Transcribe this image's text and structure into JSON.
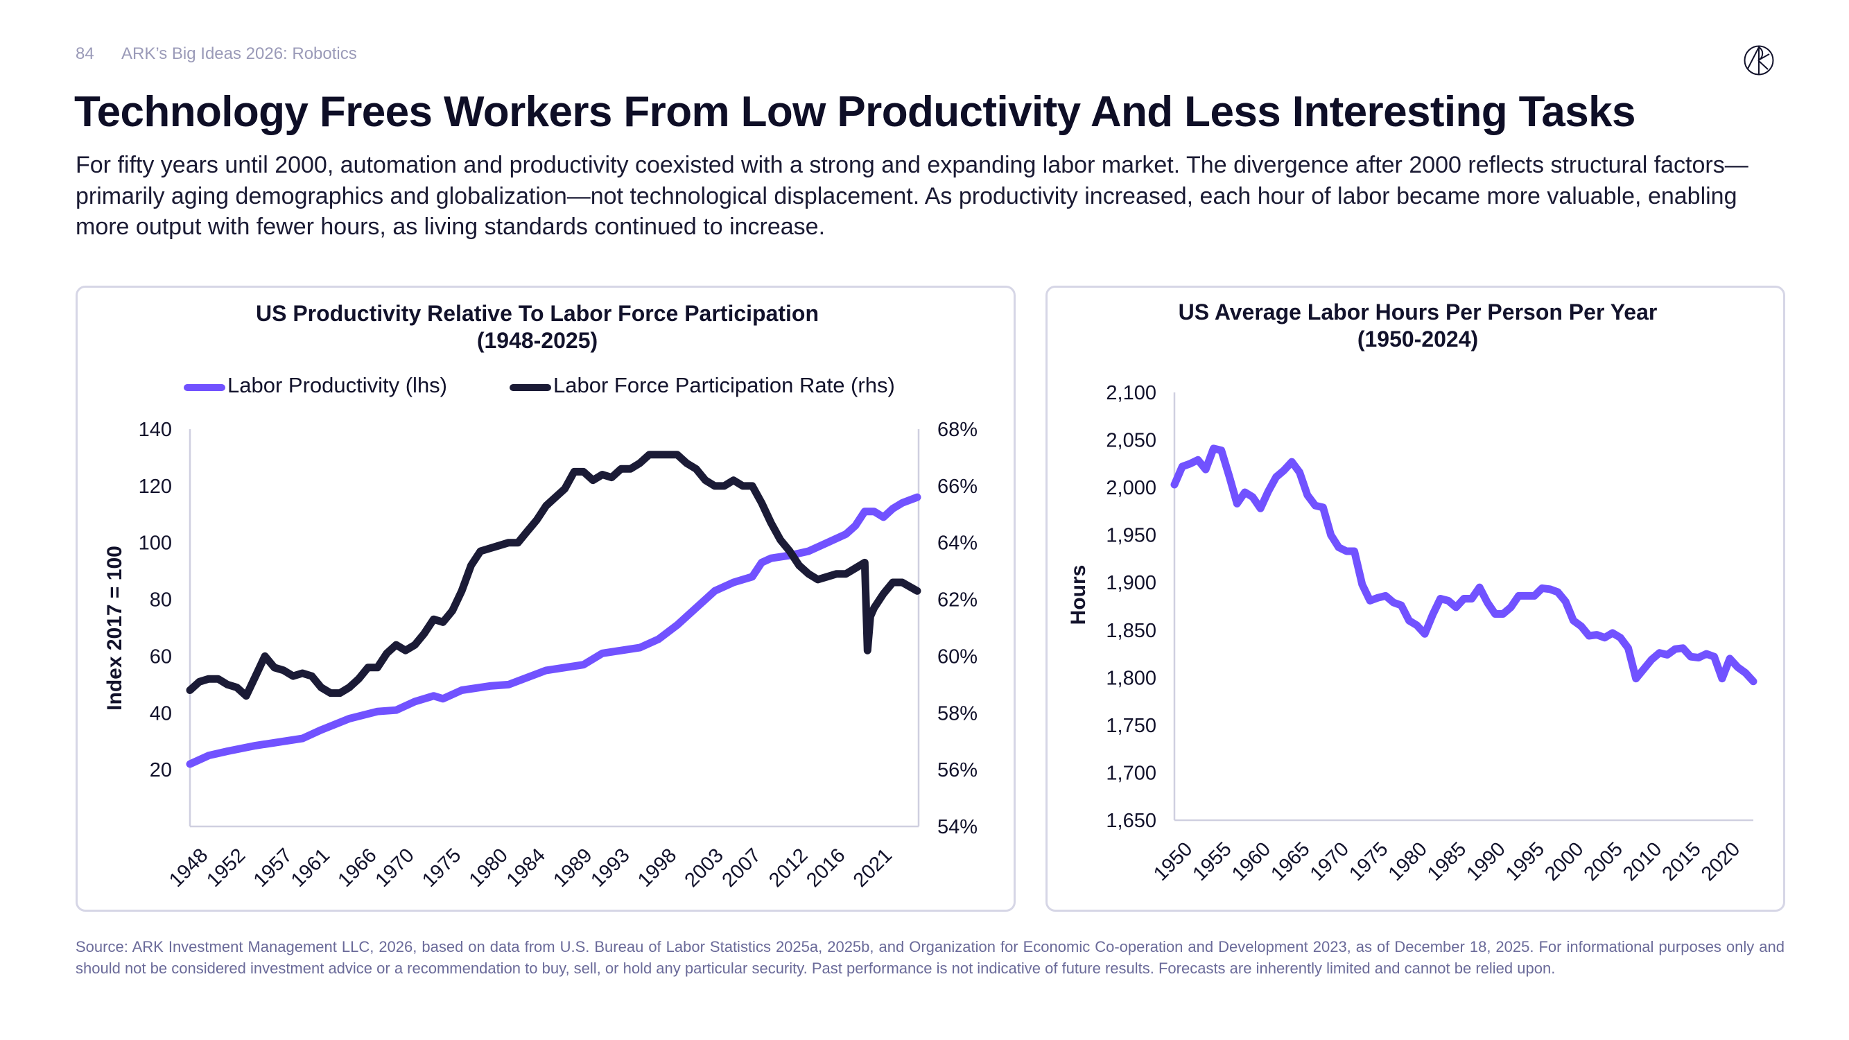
{
  "header": {
    "page_number": "84",
    "section": "ARK’s Big Ideas 2026: Robotics",
    "logo": "ark-logo-icon",
    "title": "Technology Frees Workers From Low Productivity And Less Interesting Tasks",
    "paragraph": "For fifty years until 2000, automation and productivity coexisted with a strong and expanding labor market. The divergence after 2000 reflects structural factors—primarily aging demographics and globalization—not technological displacement. As productivity increased, each hour of labor became more valuable, enabling more output with fewer hours, as living standards continued to increase."
  },
  "footnote": "Source: ARK Investment Management LLC, 2026, based on data from U.S. Bureau of Labor Statistics 2025a, 2025b, and Organization for Economic Co-operation and Development 2023, as of December 18, 2025. For informational purposes only and should not be considered investment advice or a recommendation to buy, sell, or hold any particular security. Past performance is not indicative of future results. Forecasts are inherently limited and cannot be relied upon.",
  "colors": {
    "purple": "#7152ff",
    "navy": "#1b1b36",
    "axis": "#cfcfe0"
  },
  "chart_data": [
    {
      "type": "line",
      "title": "US Productivity Relative To Labor Force Participation",
      "subtitle": "(1948-2025)",
      "ylabel": "Index 2017 = 100",
      "ylim": [
        0,
        140
      ],
      "y_ticks": [
        "20",
        "40",
        "60",
        "80",
        "100",
        "120",
        "140"
      ],
      "y2lim": [
        54,
        68
      ],
      "y2_ticks": [
        "54%",
        "56%",
        "58%",
        "60%",
        "62%",
        "64%",
        "66%",
        "68%"
      ],
      "x_ticks": [
        "1948",
        "1952",
        "1957",
        "1961",
        "1966",
        "1970",
        "1975",
        "1980",
        "1984",
        "1989",
        "1993",
        "1998",
        "2003",
        "2007",
        "2012",
        "2016",
        "2021"
      ],
      "xlim": [
        1948,
        2025.75
      ],
      "legend": "top",
      "grid": false,
      "series": [
        {
          "name": "Labor Productivity (lhs)",
          "axis": "left",
          "color": "#7152ff",
          "x": [
            1948,
            1950,
            1952,
            1955,
            1957,
            1960,
            1962,
            1965,
            1968,
            1970,
            1972,
            1974,
            1975,
            1977,
            1980,
            1982,
            1984,
            1986,
            1988,
            1990,
            1992,
            1994,
            1996,
            1998,
            2000,
            2002,
            2004,
            2006,
            2008,
            2009,
            2010,
            2012,
            2014,
            2016,
            2018,
            2019,
            2020,
            2021,
            2022,
            2023,
            2024,
            2025.6
          ],
          "values": [
            22,
            25,
            26.5,
            28.5,
            29.5,
            31,
            34,
            38,
            40.5,
            41,
            44,
            46,
            45,
            48,
            49.5,
            50,
            52.5,
            55,
            56,
            57,
            61,
            62,
            63,
            66,
            71,
            77,
            83,
            86,
            88,
            93,
            94.5,
            95.5,
            97,
            100,
            103,
            106,
            111,
            111,
            109,
            112,
            114,
            116
          ]
        },
        {
          "name": "Labor Force Participation Rate (rhs)",
          "axis": "right",
          "color": "#1b1b36",
          "x": [
            1948,
            1949,
            1950,
            1951,
            1952,
            1953,
            1954,
            1955,
            1956,
            1957,
            1958,
            1959,
            1960,
            1961,
            1962,
            1963,
            1964,
            1965,
            1966,
            1967,
            1968,
            1969,
            1970,
            1971,
            1972,
            1973,
            1974,
            1975,
            1976,
            1977,
            1978,
            1979,
            1980,
            1981,
            1982,
            1983,
            1984,
            1985,
            1986,
            1987,
            1988,
            1989,
            1990,
            1991,
            1992,
            1993,
            1994,
            1995,
            1996,
            1997,
            1998,
            1999,
            2000,
            2001,
            2002,
            2003,
            2004,
            2005,
            2006,
            2007,
            2008,
            2009,
            2010,
            2011,
            2012,
            2013,
            2014,
            2015,
            2016,
            2017,
            2018,
            2019,
            2020.0,
            2020.3,
            2020.6,
            2021,
            2022,
            2023,
            2024,
            2025.6
          ],
          "values": [
            58.8,
            59.1,
            59.2,
            59.2,
            59.0,
            58.9,
            58.6,
            59.3,
            60.0,
            59.6,
            59.5,
            59.3,
            59.4,
            59.3,
            58.9,
            58.7,
            58.7,
            58.9,
            59.2,
            59.6,
            59.6,
            60.1,
            60.4,
            60.2,
            60.4,
            60.8,
            61.3,
            61.2,
            61.6,
            62.3,
            63.2,
            63.7,
            63.8,
            63.9,
            64.0,
            64.0,
            64.4,
            64.8,
            65.3,
            65.6,
            65.9,
            66.5,
            66.5,
            66.2,
            66.4,
            66.3,
            66.6,
            66.6,
            66.8,
            67.1,
            67.1,
            67.1,
            67.1,
            66.8,
            66.6,
            66.2,
            66.0,
            66.0,
            66.2,
            66.0,
            66.0,
            65.4,
            64.7,
            64.1,
            63.7,
            63.2,
            62.9,
            62.7,
            62.8,
            62.9,
            62.9,
            63.1,
            63.3,
            60.2,
            61.4,
            61.7,
            62.2,
            62.6,
            62.6,
            62.3
          ]
        }
      ]
    },
    {
      "type": "line",
      "title": "US Average Labor Hours Per Person Per Year",
      "subtitle": "(1950-2024)",
      "ylabel": "Hours",
      "ylim": [
        1650,
        2100
      ],
      "y_ticks": [
        "1,650",
        "1,700",
        "1,750",
        "1,800",
        "1,850",
        "1,900",
        "1,950",
        "2,000",
        "2,050",
        "2,100"
      ],
      "x_ticks": [
        "1950",
        "1955",
        "1960",
        "1965",
        "1970",
        "1975",
        "1980",
        "1985",
        "1990",
        "1995",
        "2000",
        "2005",
        "2010",
        "2015",
        "2020"
      ],
      "xlim": [
        1950,
        2024
      ],
      "grid": false,
      "series": [
        {
          "color": "#7152ff",
          "x": [
            1950,
            1951,
            1952,
            1953,
            1954,
            1955,
            1956,
            1957,
            1958,
            1959,
            1960,
            1961,
            1962,
            1963,
            1964,
            1965,
            1966,
            1967,
            1968,
            1969,
            1970,
            1971,
            1972,
            1973,
            1974,
            1975,
            1976,
            1977,
            1978,
            1979,
            1980,
            1981,
            1982,
            1983,
            1984,
            1985,
            1986,
            1987,
            1988,
            1989,
            1990,
            1991,
            1992,
            1993,
            1994,
            1995,
            1996,
            1997,
            1998,
            1999,
            2000,
            2001,
            2002,
            2003,
            2004,
            2005,
            2006,
            2007,
            2008,
            2009,
            2010,
            2011,
            2012,
            2013,
            2014,
            2015,
            2016,
            2017,
            2018,
            2019,
            2020,
            2021,
            2022,
            2023,
            2024
          ],
          "values": [
            2003,
            2022,
            2025,
            2029,
            2019,
            2041,
            2039,
            2012,
            1983,
            1995,
            1990,
            1978,
            1996,
            2011,
            2018,
            2027,
            2016,
            1992,
            1981,
            1979,
            1950,
            1937,
            1933,
            1933,
            1898,
            1881,
            1884,
            1886,
            1879,
            1876,
            1860,
            1855,
            1846,
            1866,
            1883,
            1881,
            1874,
            1883,
            1883,
            1895,
            1879,
            1867,
            1867,
            1874,
            1886,
            1886,
            1886,
            1894,
            1893,
            1890,
            1880,
            1860,
            1854,
            1844,
            1845,
            1842,
            1847,
            1842,
            1831,
            1799,
            1809,
            1819,
            1826,
            1824,
            1830,
            1831,
            1822,
            1821,
            1825,
            1822,
            1799,
            1820,
            1811,
            1805,
            1796
          ]
        }
      ]
    }
  ]
}
